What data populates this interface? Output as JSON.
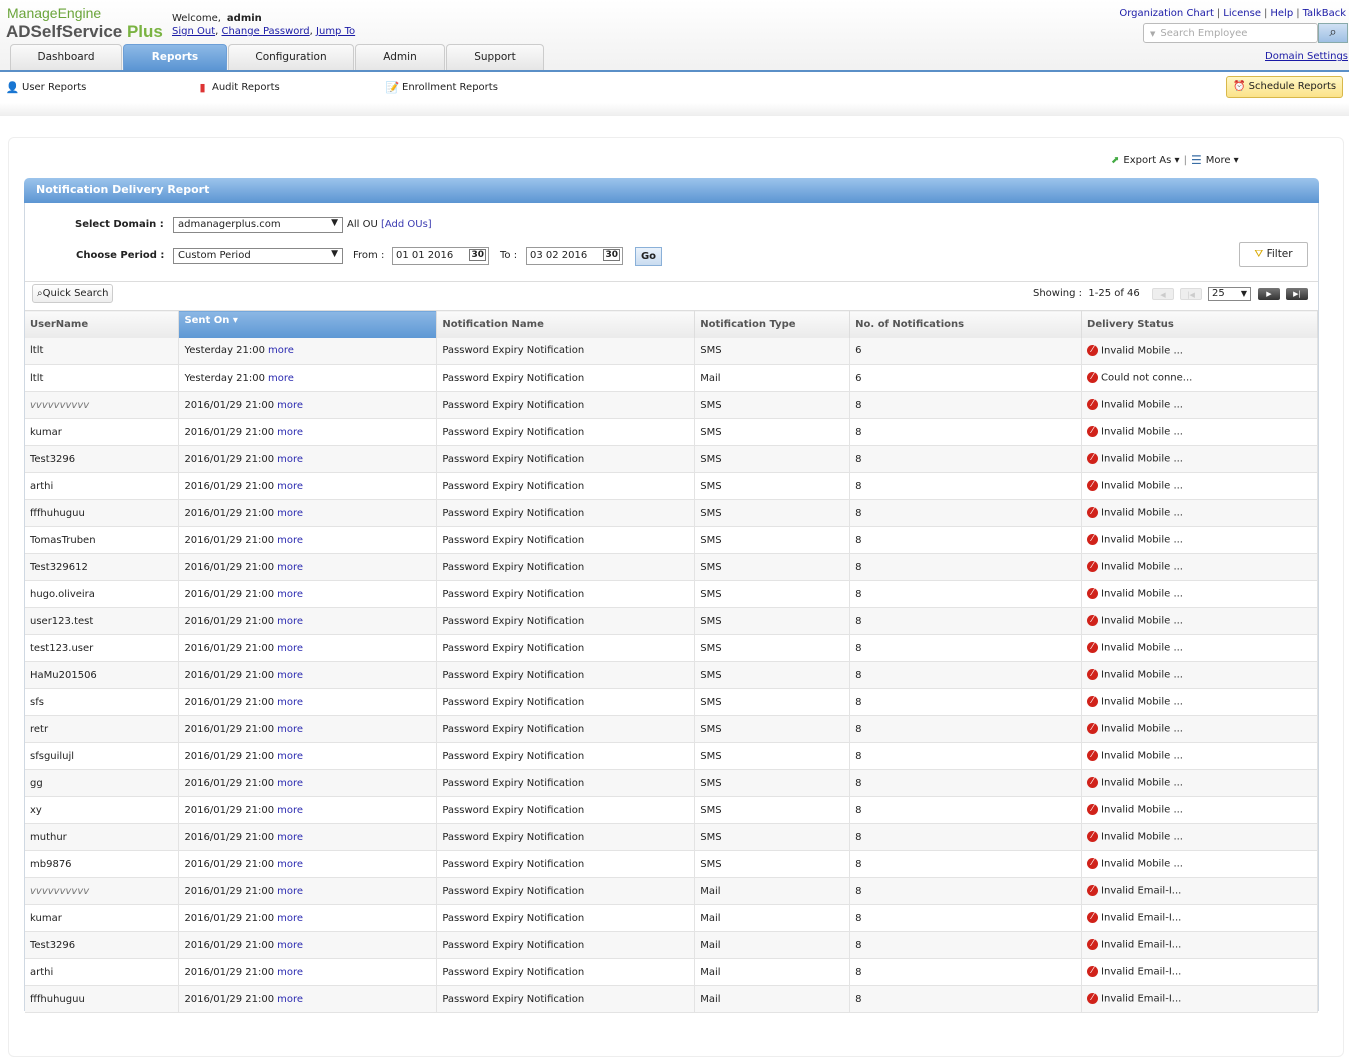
{
  "header": {
    "logo_top": "ManageEngine",
    "logo_product": "ADSelfService",
    "logo_plus": "Plus",
    "welcome_label": "Welcome,",
    "username": "admin",
    "sign_out": "Sign Out",
    "change_password": "Change Password",
    "jump_to": "Jump To",
    "top_links": [
      "Organization Chart",
      "License",
      "Help",
      "TalkBack"
    ],
    "search_placeholder": "Search Employee",
    "domain_settings": "Domain Settings"
  },
  "tabs": [
    {
      "label": "Dashboard",
      "active": false
    },
    {
      "label": "Reports",
      "active": true
    },
    {
      "label": "Configuration",
      "active": false
    },
    {
      "label": "Admin",
      "active": false
    },
    {
      "label": "Support",
      "active": false
    }
  ],
  "subnav": {
    "user_reports": "User Reports",
    "audit_reports": "Audit Reports",
    "enrollment_reports": "Enrollment Reports",
    "schedule_reports": "Schedule Reports"
  },
  "toolbar": {
    "export": "Export As",
    "more": "More"
  },
  "report": {
    "title": "Notification Delivery Report",
    "domain_label": "Select Domain :",
    "domain_value": "admanagerplus.com",
    "ou_text": "All OU",
    "add_ous": "[Add OUs]",
    "period_label": "Choose Period :",
    "period_value": "Custom Period",
    "from_label": "From :",
    "from_value": "01 01 2016",
    "to_label": "To :",
    "to_value": "03 02 2016",
    "calendar_day": "30",
    "go": "Go",
    "filter": "Filter",
    "quick_search": "Quick Search",
    "showing_label": "Showing :",
    "showing_range": "1-25 of 46",
    "page_size": "25"
  },
  "table": {
    "columns": [
      "UserName",
      "Sent On",
      "Notification Name",
      "Notification Type",
      "No. of Notifications",
      "Delivery Status"
    ],
    "more_label": "more",
    "rows": [
      [
        "ltlt",
        "Yesterday 21:00",
        "Password Expiry Notification",
        "SMS",
        "6",
        "Invalid Mobile ..."
      ],
      [
        "ltlt",
        "Yesterday 21:00",
        "Password Expiry Notification",
        "Mail",
        "6",
        "Could not conne..."
      ],
      [
        "vvvvvvvvvv",
        "2016/01/29 21:00",
        "Password Expiry Notification",
        "SMS",
        "8",
        "Invalid Mobile ..."
      ],
      [
        "kumar",
        "2016/01/29 21:00",
        "Password Expiry Notification",
        "SMS",
        "8",
        "Invalid Mobile ..."
      ],
      [
        "Test3296",
        "2016/01/29 21:00",
        "Password Expiry Notification",
        "SMS",
        "8",
        "Invalid Mobile ..."
      ],
      [
        "arthi",
        "2016/01/29 21:00",
        "Password Expiry Notification",
        "SMS",
        "8",
        "Invalid Mobile ..."
      ],
      [
        "fffhuhuguu",
        "2016/01/29 21:00",
        "Password Expiry Notification",
        "SMS",
        "8",
        "Invalid Mobile ..."
      ],
      [
        "TomasTruben",
        "2016/01/29 21:00",
        "Password Expiry Notification",
        "SMS",
        "8",
        "Invalid Mobile ..."
      ],
      [
        "Test329612",
        "2016/01/29 21:00",
        "Password Expiry Notification",
        "SMS",
        "8",
        "Invalid Mobile ..."
      ],
      [
        "hugo.oliveira",
        "2016/01/29 21:00",
        "Password Expiry Notification",
        "SMS",
        "8",
        "Invalid Mobile ..."
      ],
      [
        "user123.test",
        "2016/01/29 21:00",
        "Password Expiry Notification",
        "SMS",
        "8",
        "Invalid Mobile ..."
      ],
      [
        "test123.user",
        "2016/01/29 21:00",
        "Password Expiry Notification",
        "SMS",
        "8",
        "Invalid Mobile ..."
      ],
      [
        "HaMu201506",
        "2016/01/29 21:00",
        "Password Expiry Notification",
        "SMS",
        "8",
        "Invalid Mobile ..."
      ],
      [
        "sfs",
        "2016/01/29 21:00",
        "Password Expiry Notification",
        "SMS",
        "8",
        "Invalid Mobile ..."
      ],
      [
        "retr",
        "2016/01/29 21:00",
        "Password Expiry Notification",
        "SMS",
        "8",
        "Invalid Mobile ..."
      ],
      [
        "sfsguilujl",
        "2016/01/29 21:00",
        "Password Expiry Notification",
        "SMS",
        "8",
        "Invalid Mobile ..."
      ],
      [
        "gg",
        "2016/01/29 21:00",
        "Password Expiry Notification",
        "SMS",
        "8",
        "Invalid Mobile ..."
      ],
      [
        "xy",
        "2016/01/29 21:00",
        "Password Expiry Notification",
        "SMS",
        "8",
        "Invalid Mobile ..."
      ],
      [
        "muthur",
        "2016/01/29 21:00",
        "Password Expiry Notification",
        "SMS",
        "8",
        "Invalid Mobile ..."
      ],
      [
        "mb9876",
        "2016/01/29 21:00",
        "Password Expiry Notification",
        "SMS",
        "8",
        "Invalid Mobile ..."
      ],
      [
        "vvvvvvvvvv",
        "2016/01/29 21:00",
        "Password Expiry Notification",
        "Mail",
        "8",
        "Invalid Email-I..."
      ],
      [
        "kumar",
        "2016/01/29 21:00",
        "Password Expiry Notification",
        "Mail",
        "8",
        "Invalid Email-I..."
      ],
      [
        "Test3296",
        "2016/01/29 21:00",
        "Password Expiry Notification",
        "Mail",
        "8",
        "Invalid Email-I..."
      ],
      [
        "arthi",
        "2016/01/29 21:00",
        "Password Expiry Notification",
        "Mail",
        "8",
        "Invalid Email-I..."
      ],
      [
        "fffhuhuguu",
        "2016/01/29 21:00",
        "Password Expiry Notification",
        "Mail",
        "8",
        "Invalid Email-I..."
      ]
    ]
  },
  "colors": {
    "accent": "#5c95d2",
    "error": "#d0221a",
    "link": "#1a1aa6"
  }
}
